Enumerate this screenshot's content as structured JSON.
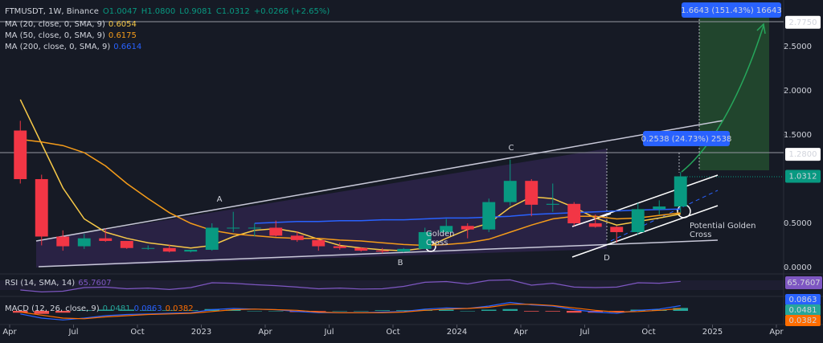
{
  "chart_data": [
    {
      "type": "candlestick",
      "title": "FTMUSDT, 1W, Binance",
      "ohlc_labels": [
        "O1.0047",
        "H1.0800",
        "L0.9081",
        "C1.0312",
        "+0.0266 (+2.65%)"
      ],
      "x": [
        "2022-04",
        "2022-05",
        "2022-06",
        "2022-07",
        "2022-08",
        "2022-09",
        "2022-10",
        "2022-11",
        "2022-12",
        "2023-01",
        "2023-02",
        "2023-03",
        "2023-04",
        "2023-05",
        "2023-06",
        "2023-07",
        "2023-08",
        "2023-09",
        "2023-10",
        "2023-11",
        "2023-12",
        "2024-01",
        "2024-02",
        "2024-03",
        "2024-04",
        "2024-05",
        "2024-06",
        "2024-07",
        "2024-08",
        "2024-09",
        "2024-10",
        "2024-11"
      ],
      "open": [
        1.55,
        1.0,
        0.35,
        0.24,
        0.33,
        0.3,
        0.22,
        0.22,
        0.18,
        0.2,
        0.45,
        0.45,
        0.45,
        0.36,
        0.31,
        0.24,
        0.22,
        0.19,
        0.18,
        0.21,
        0.4,
        0.47,
        0.43,
        0.74,
        0.98,
        0.71,
        0.72,
        0.5,
        0.46,
        0.4,
        0.66,
        0.69
      ],
      "high": [
        1.66,
        1.05,
        0.42,
        0.38,
        0.44,
        0.3,
        0.25,
        0.26,
        0.2,
        0.5,
        0.63,
        0.5,
        0.53,
        0.41,
        0.32,
        0.28,
        0.23,
        0.22,
        0.22,
        0.45,
        0.55,
        0.5,
        0.78,
        1.22,
        1.0,
        0.95,
        0.74,
        0.6,
        0.47,
        0.73,
        0.76,
        1.08
      ],
      "low": [
        0.95,
        0.25,
        0.19,
        0.21,
        0.29,
        0.21,
        0.2,
        0.17,
        0.17,
        0.19,
        0.4,
        0.35,
        0.35,
        0.29,
        0.19,
        0.2,
        0.18,
        0.16,
        0.17,
        0.21,
        0.37,
        0.33,
        0.4,
        0.7,
        0.58,
        0.63,
        0.47,
        0.45,
        0.28,
        0.37,
        0.6,
        0.62
      ],
      "close": [
        1.0,
        0.35,
        0.24,
        0.33,
        0.3,
        0.22,
        0.22,
        0.18,
        0.2,
        0.45,
        0.45,
        0.45,
        0.36,
        0.31,
        0.24,
        0.22,
        0.19,
        0.18,
        0.21,
        0.4,
        0.47,
        0.43,
        0.74,
        0.98,
        0.71,
        0.72,
        0.5,
        0.46,
        0.4,
        0.66,
        0.69,
        1.0312
      ],
      "up_color": "#089981",
      "down_color": "#f23645",
      "series": [
        {
          "name": "MA (20, close, 0, SMA, 9)",
          "color": "#f7c948",
          "values": [
            1.9,
            1.4,
            0.9,
            0.55,
            0.4,
            0.33,
            0.28,
            0.25,
            0.22,
            0.25,
            0.35,
            0.42,
            0.44,
            0.4,
            0.32,
            0.25,
            0.22,
            0.2,
            0.19,
            0.22,
            0.33,
            0.43,
            0.5,
            0.68,
            0.8,
            0.78,
            0.68,
            0.56,
            0.48,
            0.52,
            0.56,
            0.6054
          ]
        },
        {
          "name": "MA (50, close, 0, SMA, 9)",
          "color": "#f59c1a",
          "values": [
            1.45,
            1.42,
            1.38,
            1.3,
            1.15,
            0.95,
            0.78,
            0.62,
            0.5,
            0.42,
            0.38,
            0.36,
            0.34,
            0.33,
            0.33,
            0.31,
            0.3,
            0.28,
            0.26,
            0.25,
            0.26,
            0.28,
            0.32,
            0.4,
            0.48,
            0.55,
            0.58,
            0.58,
            0.55,
            0.56,
            0.59,
            0.6175
          ]
        },
        {
          "name": "MA (200, close, 0, SMA, 9)",
          "color": "#2962ff",
          "values": [
            null,
            null,
            null,
            null,
            null,
            null,
            null,
            null,
            null,
            null,
            null,
            0.5,
            0.51,
            0.52,
            0.52,
            0.53,
            0.53,
            0.54,
            0.54,
            0.55,
            0.56,
            0.56,
            0.57,
            0.58,
            0.6,
            0.61,
            0.62,
            0.63,
            0.64,
            0.65,
            0.655,
            0.6614
          ]
        }
      ],
      "xlim": [
        "2022-04",
        "2025-04"
      ],
      "xticks": [
        {
          "value": "2022-04",
          "label": "Apr"
        },
        {
          "value": "2022-07",
          "label": "Jul"
        },
        {
          "value": "2022-10",
          "label": "Oct"
        },
        {
          "value": "2023-01",
          "label": "2023"
        },
        {
          "value": "2023-04",
          "label": "Apr"
        },
        {
          "value": "2023-07",
          "label": "Jul"
        },
        {
          "value": "2023-10",
          "label": "Oct"
        },
        {
          "value": "2024-01",
          "label": "2024"
        },
        {
          "value": "2024-04",
          "label": "Apr"
        },
        {
          "value": "2024-07",
          "label": "Jul"
        },
        {
          "value": "2024-10",
          "label": "Oct"
        },
        {
          "value": "2025-01",
          "label": "2025"
        },
        {
          "value": "2025-04",
          "label": "Apr"
        }
      ],
      "ylim": [
        -0.064,
        2.982
      ],
      "yticks": [
        {
          "value": 0,
          "label": "0.0000"
        },
        {
          "value": 0.5,
          "label": "0.5000"
        },
        {
          "value": 1.5,
          "label": "1.5000"
        },
        {
          "value": 2,
          "label": "2.0000"
        },
        {
          "value": 2.5,
          "label": "2.5000"
        }
      ],
      "grid": false,
      "levels": [
        {
          "value": 2.775,
          "label": "2.7750"
        },
        {
          "value": 1.28,
          "label": "1.2800"
        }
      ],
      "annotations": [
        "A",
        "B",
        "C",
        "D",
        "Golden",
        "Cross",
        "Potential Golden",
        "Cross"
      ],
      "measures": [
        "1.6643 (151.43%) 16643",
        "0.2538 (24.73%) 2538"
      ]
    },
    {
      "type": "line",
      "series": [
        {
          "name": "RSI (14, SMA, 14)",
          "color": "#7e57c2",
          "values": [
            30,
            22,
            25,
            40,
            42,
            35,
            38,
            32,
            40,
            60,
            58,
            52,
            48,
            42,
            35,
            38,
            34,
            35,
            45,
            62,
            65,
            55,
            70,
            72,
            50,
            58,
            42,
            40,
            42,
            60,
            58,
            65.7607
          ]
        }
      ],
      "ylim": [
        10,
        90
      ]
    },
    {
      "type": "macd",
      "title": "MACD (12, 26, close, 9)",
      "histogram": {
        "color_up": "#26a69a",
        "color_down": "#ef5350",
        "values": [
          -0.03,
          -0.05,
          -0.03,
          0.01,
          0.02,
          0.02,
          0.01,
          0.01,
          0.01,
          0.03,
          0.02,
          0,
          0,
          -0.02,
          -0.01,
          0,
          0,
          0.01,
          0.01,
          0.02,
          0.02,
          0,
          0.02,
          0.03,
          -0.01,
          -0.01,
          -0.03,
          -0.03,
          -0.02,
          0.02,
          0.02,
          0.0481
        ]
      },
      "macd": {
        "color": "#2962ff",
        "values": [
          -0.05,
          -0.12,
          -0.15,
          -0.12,
          -0.08,
          -0.06,
          -0.05,
          -0.04,
          -0.03,
          0.02,
          0.04,
          0.03,
          0.02,
          -0.01,
          -0.03,
          -0.03,
          -0.03,
          -0.02,
          -0.01,
          0.03,
          0.05,
          0.04,
          0.08,
          0.14,
          0.1,
          0.08,
          0.02,
          -0.02,
          -0.04,
          0.01,
          0.03,
          0.0863
        ]
      },
      "signal": {
        "color": "#ff6d00",
        "values": [
          -0.02,
          -0.07,
          -0.12,
          -0.13,
          -0.1,
          -0.08,
          -0.06,
          -0.05,
          -0.04,
          -0.01,
          0.02,
          0.03,
          0.02,
          0.01,
          -0.02,
          -0.03,
          -0.03,
          -0.03,
          -0.02,
          0.01,
          0.03,
          0.04,
          0.06,
          0.11,
          0.11,
          0.09,
          0.05,
          0.01,
          -0.02,
          -0.01,
          0.01,
          0.0382
        ]
      },
      "ylim": [
        -0.2,
        0.2
      ]
    }
  ]
}
